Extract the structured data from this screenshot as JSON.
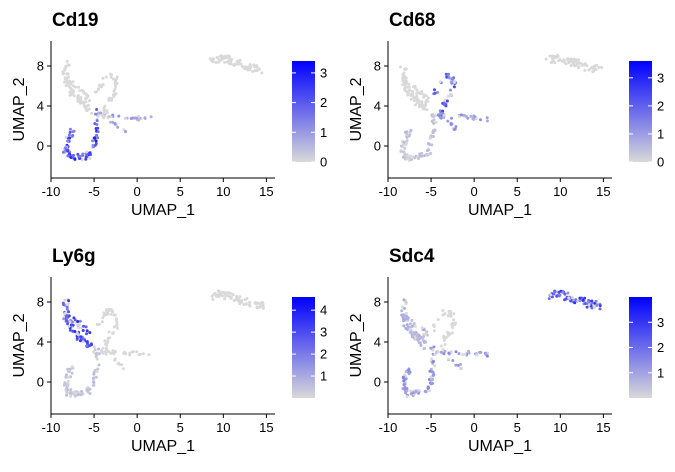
{
  "chart_data": {
    "type": "scatter",
    "layout_title": "",
    "x_range": [
      -10,
      16
    ],
    "y_range": [
      -3.2,
      10.5
    ],
    "xlabel": "UMAP_1",
    "ylabel": "UMAP_2",
    "xticks": [
      -10,
      -5,
      0,
      5,
      10,
      15
    ],
    "yticks": [
      0,
      4,
      8
    ],
    "low_color": "#d9d9d9",
    "high_color": "#0000ff",
    "grid": false,
    "legend": "right of each panel (colorbar)",
    "panels": [
      {
        "gene": "Cd19",
        "colorbar_range": [
          0,
          3.4
        ],
        "colorbar_ticks": [
          0,
          1,
          2,
          3
        ],
        "expression_zones": [
          {
            "cluster": "bottom-left loop",
            "level": 2.6
          },
          {
            "cluster": "central junction",
            "level": 1.0
          },
          {
            "cluster": "upper-left arm",
            "level": 0.0
          },
          {
            "cluster": "right island",
            "level": 0.0
          }
        ]
      },
      {
        "gene": "Cd68",
        "colorbar_range": [
          0,
          3.6
        ],
        "colorbar_ticks": [
          0,
          1,
          2,
          3
        ],
        "expression_zones": [
          {
            "cluster": "middle loop",
            "level": 2.2
          },
          {
            "cluster": "central junction",
            "level": 1.2
          },
          {
            "cluster": "bottom-left loop",
            "level": 0.5
          },
          {
            "cluster": "right island",
            "level": 0.0
          }
        ]
      },
      {
        "gene": "Ly6g",
        "colorbar_range": [
          0,
          4.6
        ],
        "colorbar_ticks": [
          1,
          2,
          3,
          4
        ],
        "expression_zones": [
          {
            "cluster": "upper-left arm",
            "level": 3.4
          },
          {
            "cluster": "bottom-left loop",
            "level": 0.6
          },
          {
            "cluster": "middle loop",
            "level": 0.0
          },
          {
            "cluster": "right island",
            "level": 0.0
          }
        ]
      },
      {
        "gene": "Sdc4",
        "colorbar_range": [
          0,
          4.0
        ],
        "colorbar_ticks": [
          1,
          2,
          3
        ],
        "expression_zones": [
          {
            "cluster": "right island",
            "level": 2.8
          },
          {
            "cluster": "bottom-left loop",
            "level": 1.4
          },
          {
            "cluster": "central junction",
            "level": 1.4
          },
          {
            "cluster": "upper-left arm",
            "level": 0.8
          }
        ]
      }
    ]
  }
}
